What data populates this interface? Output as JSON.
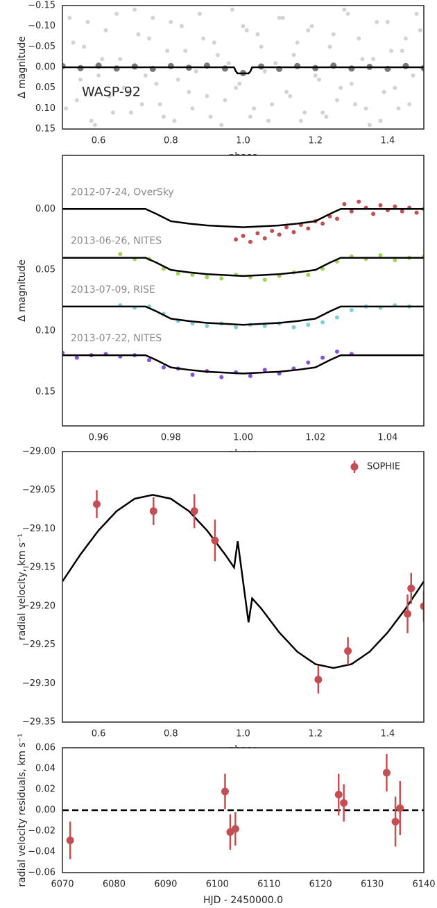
{
  "chart_data": [
    {
      "type": "scatter",
      "ylabel": "Δ magnitude",
      "xlabel": "phase",
      "annotation": "WASP-92",
      "xlim": [
        0.5,
        1.5
      ],
      "ylim": [
        0.15,
        -0.15
      ],
      "xticks": [
        0.6,
        0.8,
        {
          "value": 1.0,
          "label": "1.0"
        },
        1.2,
        1.4
      ],
      "yticks": [
        {
          "value": -0.15,
          "label": "−0.15"
        },
        {
          "value": -0.1,
          "label": "−0.10"
        },
        {
          "value": -0.05,
          "label": "−0.05"
        },
        {
          "value": 0,
          "label": "0.00"
        },
        0.05,
        {
          "value": 0.1,
          "label": "0.10"
        },
        0.15
      ],
      "series": [
        {
          "style": "points",
          "color": "#d3d3d3",
          "x": [
            0.52,
            0.54,
            0.56,
            0.58,
            0.6,
            0.62,
            0.64,
            0.66,
            0.68,
            0.7,
            0.72,
            0.74,
            0.76,
            0.78,
            0.8,
            0.82,
            0.84,
            0.86,
            0.88,
            0.9,
            0.92,
            0.94,
            0.96,
            0.98,
            1.0,
            1.02,
            1.04,
            1.06,
            1.08,
            1.1,
            1.12,
            1.14,
            1.16,
            1.18,
            1.2,
            1.22,
            1.24,
            1.26,
            1.28,
            1.3,
            1.32,
            1.34,
            1.36,
            1.38,
            1.4,
            1.42,
            1.44,
            1.46,
            1.48
          ],
          "values": [
            -0.12,
            0.08,
            -0.05,
            0.13,
            0.02,
            -0.09,
            0.11,
            -0.02,
            0.06,
            -0.14,
            0.09,
            -0.07,
            0.04,
            0.12,
            -0.11,
            0.03,
            -0.04,
            0.1,
            -0.13,
            0.07,
            -0.06,
            0.14,
            -0.01,
            0.05,
            -0.1,
            0.12,
            -0.08,
            0.01,
            0.09,
            -0.12,
            0.06,
            -0.03,
            0.13,
            -0.09,
            0.02,
            0.11,
            -0.05,
            0.08,
            -0.14,
            0.04,
            -0.07,
            0.1,
            -0.02,
            0.13,
            -0.11,
            0.05,
            -0.04,
            0.09,
            -0.13
          ]
        },
        {
          "style": "points",
          "color": "#d3d3d3",
          "x": [
            0.51,
            0.53,
            0.55,
            0.57,
            0.59,
            0.61,
            0.63,
            0.65,
            0.67,
            0.69,
            0.71,
            0.73,
            0.75,
            0.77,
            0.79,
            0.81,
            0.83,
            0.85,
            0.87,
            0.89,
            0.91,
            0.93,
            0.95,
            0.97,
            0.99,
            1.01,
            1.03,
            1.05,
            1.07,
            1.09,
            1.11,
            1.13,
            1.15,
            1.17,
            1.19,
            1.21,
            1.23,
            1.25,
            1.27,
            1.29,
            1.31,
            1.33,
            1.35,
            1.37,
            1.39,
            1.41,
            1.43,
            1.45,
            1.47,
            1.49
          ],
          "values": [
            0.1,
            -0.06,
            0.03,
            -0.11,
            0.14,
            -0.02,
            0.07,
            -0.13,
            0.05,
            0.11,
            -0.08,
            0.02,
            -0.12,
            0.09,
            -0.04,
            0.13,
            -0.1,
            0.06,
            0.01,
            -0.07,
            0.12,
            -0.03,
            0.08,
            -0.14,
            0.04,
            -0.09,
            0.1,
            -0.05,
            0.13,
            -0.01,
            -0.12,
            0.07,
            -0.06,
            0.11,
            -0.1,
            0.03,
            0.12,
            -0.08,
            0.05,
            -0.13,
            0.09,
            -0.02,
            0.14,
            -0.11,
            0.06,
            -0.04,
            0.1,
            -0.07,
            0.02,
            -0.09
          ]
        },
        {
          "style": "binned",
          "color": "#7a7a7a",
          "x": [
            0.5,
            0.55,
            0.6,
            0.65,
            0.7,
            0.75,
            0.8,
            0.85,
            0.9,
            0.95,
            1.0,
            1.05,
            1.1,
            1.15,
            1.2,
            1.25,
            1.3,
            1.35,
            1.4,
            1.45,
            1.5
          ],
          "values": [
            -0.003,
            0.002,
            -0.004,
            0.003,
            -0.002,
            0.004,
            -0.003,
            0.001,
            -0.004,
            0.003,
            0.014,
            -0.002,
            0.004,
            -0.003,
            0.002,
            -0.004,
            0.003,
            -0.001,
            0.004,
            -0.003,
            0.002
          ]
        },
        {
          "style": "line",
          "color": "#000000",
          "x": [
            0.5,
            0.975,
            0.98,
            0.985,
            1.015,
            1.02,
            1.025,
            1.5
          ],
          "values": [
            0,
            0,
            0.01,
            0.015,
            0.015,
            0.01,
            0,
            0
          ]
        }
      ]
    },
    {
      "type": "scatter",
      "ylabel": "Δ magnitude",
      "xlabel": "phase",
      "xlim": [
        0.95,
        1.05
      ],
      "ylim": [
        0.178,
        -0.044
      ],
      "xticks": [
        0.96,
        0.98,
        {
          "value": 1.0,
          "label": "1.00"
        },
        1.02,
        1.04
      ],
      "yticks": [
        {
          "value": 0,
          "label": "0.00"
        },
        0.05,
        {
          "value": 0.1,
          "label": "0.10"
        },
        0.15
      ],
      "series": [
        {
          "name": "2012-07-24, OverSky",
          "style": "points",
          "color": "#c44e52",
          "x": [
            0.998,
            1.0,
            1.002,
            1.004,
            1.006,
            1.008,
            1.01,
            1.012,
            1.014,
            1.016,
            1.018,
            1.02,
            1.022,
            1.024,
            1.026,
            1.028,
            1.03,
            1.032,
            1.034,
            1.036,
            1.038,
            1.04,
            1.042,
            1.044,
            1.046,
            1.048,
            1.05
          ],
          "values": [
            0.025,
            0.022,
            0.027,
            0.02,
            0.024,
            0.018,
            0.021,
            0.015,
            0.019,
            0.013,
            0.016,
            0.01,
            0.012,
            0.006,
            0.008,
            -0.004,
            0.002,
            -0.006,
            -0.001,
            0.004,
            -0.003,
            0.001,
            -0.002,
            0.002,
            -0.001,
            0.003,
            0
          ]
        },
        {
          "style": "line",
          "color": "#000000",
          "x": [
            0.95,
            0.973,
            0.976,
            0.98,
            0.985,
            0.99,
            1.0,
            1.01,
            1.015,
            1.02,
            1.024,
            1.027,
            1.05
          ],
          "values": [
            0,
            0,
            0.004,
            0.01,
            0.012,
            0.0135,
            0.015,
            0.0135,
            0.012,
            0.01,
            0.004,
            0,
            0
          ]
        },
        {
          "name": "2013-06-26, NITES",
          "style": "points",
          "color": "#9fd65a",
          "x": [
            0.966,
            0.97,
            0.974,
            0.978,
            0.982,
            0.986,
            0.99,
            0.994,
            0.998,
            1.002,
            1.006,
            1.01,
            1.014,
            1.018,
            1.022,
            1.026,
            1.03,
            1.034,
            1.038,
            1.042,
            1.046,
            1.05
          ],
          "values": [
            0.037,
            0.041,
            0.041,
            0.049,
            0.053,
            0.054,
            0.056,
            0.057,
            0.054,
            0.056,
            0.058,
            0.055,
            0.052,
            0.054,
            0.049,
            0.043,
            0.039,
            0.041,
            0.038,
            0.042,
            0.04,
            0.039
          ]
        },
        {
          "style": "line",
          "color": "#000000",
          "x": [
            0.95,
            0.973,
            0.976,
            0.98,
            0.985,
            0.99,
            1.0,
            1.01,
            1.015,
            1.02,
            1.024,
            1.027,
            1.05
          ],
          "values": [
            0.04,
            0.04,
            0.044,
            0.05,
            0.052,
            0.0535,
            0.055,
            0.0535,
            0.052,
            0.05,
            0.044,
            0.04,
            0.04
          ]
        },
        {
          "name": "2013-07-09, RISE",
          "style": "points",
          "color": "#7dd0d8",
          "x": [
            0.966,
            0.97,
            0.974,
            0.978,
            0.982,
            0.986,
            0.99,
            0.994,
            0.998,
            1.002,
            1.006,
            1.01,
            1.014,
            1.018,
            1.022,
            1.026,
            1.03,
            1.034,
            1.038,
            1.042,
            1.046
          ],
          "values": [
            0.079,
            0.081,
            0.08,
            0.086,
            0.092,
            0.094,
            0.096,
            0.094,
            0.097,
            0.095,
            0.096,
            0.094,
            0.097,
            0.095,
            0.093,
            0.089,
            0.083,
            0.08,
            0.081,
            0.079,
            0.08
          ]
        },
        {
          "style": "line",
          "color": "#000000",
          "x": [
            0.95,
            0.973,
            0.976,
            0.98,
            0.985,
            0.99,
            1.0,
            1.01,
            1.015,
            1.02,
            1.024,
            1.027,
            1.05
          ],
          "values": [
            0.08,
            0.08,
            0.084,
            0.09,
            0.092,
            0.0935,
            0.095,
            0.0935,
            0.092,
            0.09,
            0.084,
            0.08,
            0.08
          ]
        },
        {
          "name": "2013-07-22, NITES",
          "style": "points",
          "color": "#8c4fd8",
          "x": [
            0.95,
            0.954,
            0.958,
            0.962,
            0.966,
            0.97,
            0.974,
            0.978,
            0.982,
            0.986,
            0.99,
            0.994,
            0.998,
            1.002,
            1.006,
            1.01,
            1.014,
            1.018,
            1.022,
            1.026,
            1.03
          ],
          "values": [
            0.118,
            0.122,
            0.12,
            0.119,
            0.121,
            0.12,
            0.124,
            0.13,
            0.131,
            0.136,
            0.133,
            0.138,
            0.134,
            0.137,
            0.132,
            0.135,
            0.131,
            0.126,
            0.122,
            0.117,
            0.119
          ]
        },
        {
          "style": "line",
          "color": "#000000",
          "x": [
            0.95,
            0.973,
            0.976,
            0.98,
            0.985,
            0.99,
            1.0,
            1.01,
            1.015,
            1.02,
            1.024,
            1.027,
            1.05
          ],
          "values": [
            0.12,
            0.12,
            0.124,
            0.13,
            0.132,
            0.1335,
            0.135,
            0.1335,
            0.132,
            0.13,
            0.124,
            0.12,
            0.12
          ]
        }
      ]
    },
    {
      "type": "scatter",
      "ylabel": "radial velocity, km s⁻¹",
      "xlabel": "phase",
      "legend": "upper right",
      "xlim": [
        0.5,
        1.5
      ],
      "ylim": [
        -29.35,
        -29.0
      ],
      "xticks": [
        0.6,
        0.8,
        {
          "value": 1.0,
          "label": "1.0"
        },
        1.2,
        1.4
      ],
      "yticks": [
        {
          "value": -29.35,
          "label": "−29.35"
        },
        {
          "value": -29.3,
          "label": "−29.30"
        },
        {
          "value": -29.25,
          "label": "−29.25"
        },
        {
          "value": -29.2,
          "label": "−29.20"
        },
        {
          "value": -29.15,
          "label": "−29.15"
        },
        {
          "value": -29.1,
          "label": "−29.10"
        },
        {
          "value": -29.05,
          "label": "−29.05"
        },
        {
          "value": -29.0,
          "label": "−29.00"
        }
      ],
      "series": [
        {
          "style": "line",
          "color": "#000000",
          "x": [
            0.5,
            0.55,
            0.6,
            0.65,
            0.7,
            0.75,
            0.8,
            0.85,
            0.9,
            0.95,
            0.975,
            0.985,
            1.015,
            1.025,
            1.05,
            1.1,
            1.15,
            1.2,
            1.25,
            1.3,
            1.35,
            1.4,
            1.45,
            1.5
          ],
          "values": [
            -29.168,
            -29.133,
            -29.102,
            -29.077,
            -29.061,
            -29.056,
            -29.061,
            -29.077,
            -29.102,
            -29.133,
            -29.15,
            -29.116,
            -29.221,
            -29.19,
            -29.203,
            -29.234,
            -29.259,
            -29.275,
            -29.28,
            -29.275,
            -29.259,
            -29.234,
            -29.203,
            -29.168
          ]
        },
        {
          "name": "SOPHIE",
          "style": "errorbar",
          "color": "#c44e52",
          "x": [
            0.595,
            0.752,
            0.865,
            0.922,
            1.208,
            1.29,
            1.455,
            1.465,
            1.5
          ],
          "values": [
            -29.068,
            -29.077,
            -29.077,
            -29.115,
            -29.295,
            -29.258,
            -29.21,
            -29.177,
            -29.2
          ],
          "errors": [
            0.018,
            0.018,
            0.022,
            0.027,
            0.018,
            0.018,
            0.025,
            0.02,
            0.02
          ]
        }
      ]
    },
    {
      "type": "scatter",
      "ylabel": "radial velocity residuals, km s⁻¹",
      "xlabel": "HJD - 2450000.0",
      "reference_line": 0,
      "xlim": [
        6070,
        6140
      ],
      "ylim": [
        -0.06,
        0.06
      ],
      "xticks": [
        6070,
        6080,
        6090,
        6100,
        6110,
        6120,
        6130,
        6140
      ],
      "yticks": [
        {
          "value": -0.06,
          "label": "−0.06"
        },
        {
          "value": -0.04,
          "label": "−0.04"
        },
        {
          "value": -0.02,
          "label": "−0.02"
        },
        {
          "value": 0,
          "label": "0.00"
        },
        0.02,
        0.04,
        0.06
      ],
      "series": [
        {
          "style": "errorbar",
          "color": "#c44e52",
          "x": [
            6071.5,
            6101.5,
            6102.5,
            6103.5,
            6123.5,
            6124.5,
            6132.8,
            6134.5,
            6135.4
          ],
          "values": [
            -0.029,
            0.018,
            -0.021,
            -0.018,
            0.015,
            0.007,
            0.036,
            -0.011,
            0.002
          ],
          "errors": [
            0.018,
            0.017,
            0.017,
            0.016,
            0.02,
            0.018,
            0.018,
            0.024,
            0.026
          ]
        }
      ]
    }
  ]
}
